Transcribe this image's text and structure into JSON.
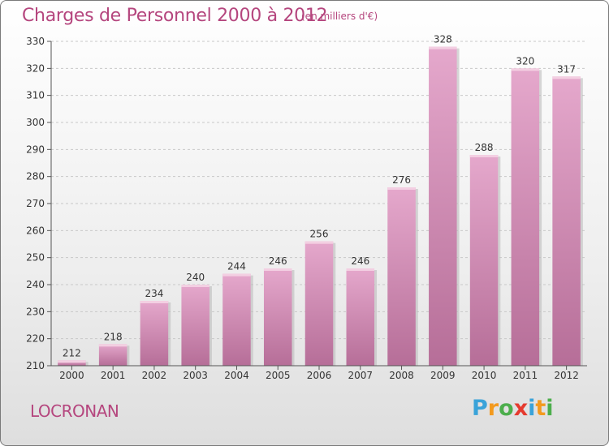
{
  "header": {
    "title": "Charges de Personnel 2000 à 2012",
    "subtitle": "(en milliers d'€)"
  },
  "location": "LOCRONAN",
  "logo": {
    "letters": [
      {
        "char": "P",
        "color": "#3aa3d9"
      },
      {
        "char": "r",
        "color": "#f39a1e"
      },
      {
        "char": "o",
        "color": "#4cae4c"
      },
      {
        "char": "x",
        "color": "#e53a2e"
      },
      {
        "char": "i",
        "color": "#3aa3d9"
      },
      {
        "char": "t",
        "color": "#f39a1e"
      },
      {
        "char": "i",
        "color": "#4cae4c"
      }
    ]
  },
  "colors": {
    "bar_top": "#e5a8cc",
    "bar_bottom": "#b66e98",
    "text_accent": "#b5467e"
  },
  "chart_data": {
    "type": "bar",
    "title": "Charges de Personnel 2000 à 2012",
    "subtitle": "(en milliers d'€)",
    "categories": [
      "2000",
      "2001",
      "2002",
      "2003",
      "2004",
      "2005",
      "2006",
      "2007",
      "2008",
      "2009",
      "2010",
      "2011",
      "2012"
    ],
    "values": [
      212,
      218,
      234,
      240,
      244,
      246,
      256,
      246,
      276,
      328,
      288,
      320,
      317
    ],
    "ylim": [
      210,
      330
    ],
    "yticks": [
      210,
      220,
      230,
      240,
      250,
      260,
      270,
      280,
      290,
      300,
      310,
      320,
      330
    ],
    "grid": true,
    "xlabel": "",
    "ylabel": ""
  }
}
